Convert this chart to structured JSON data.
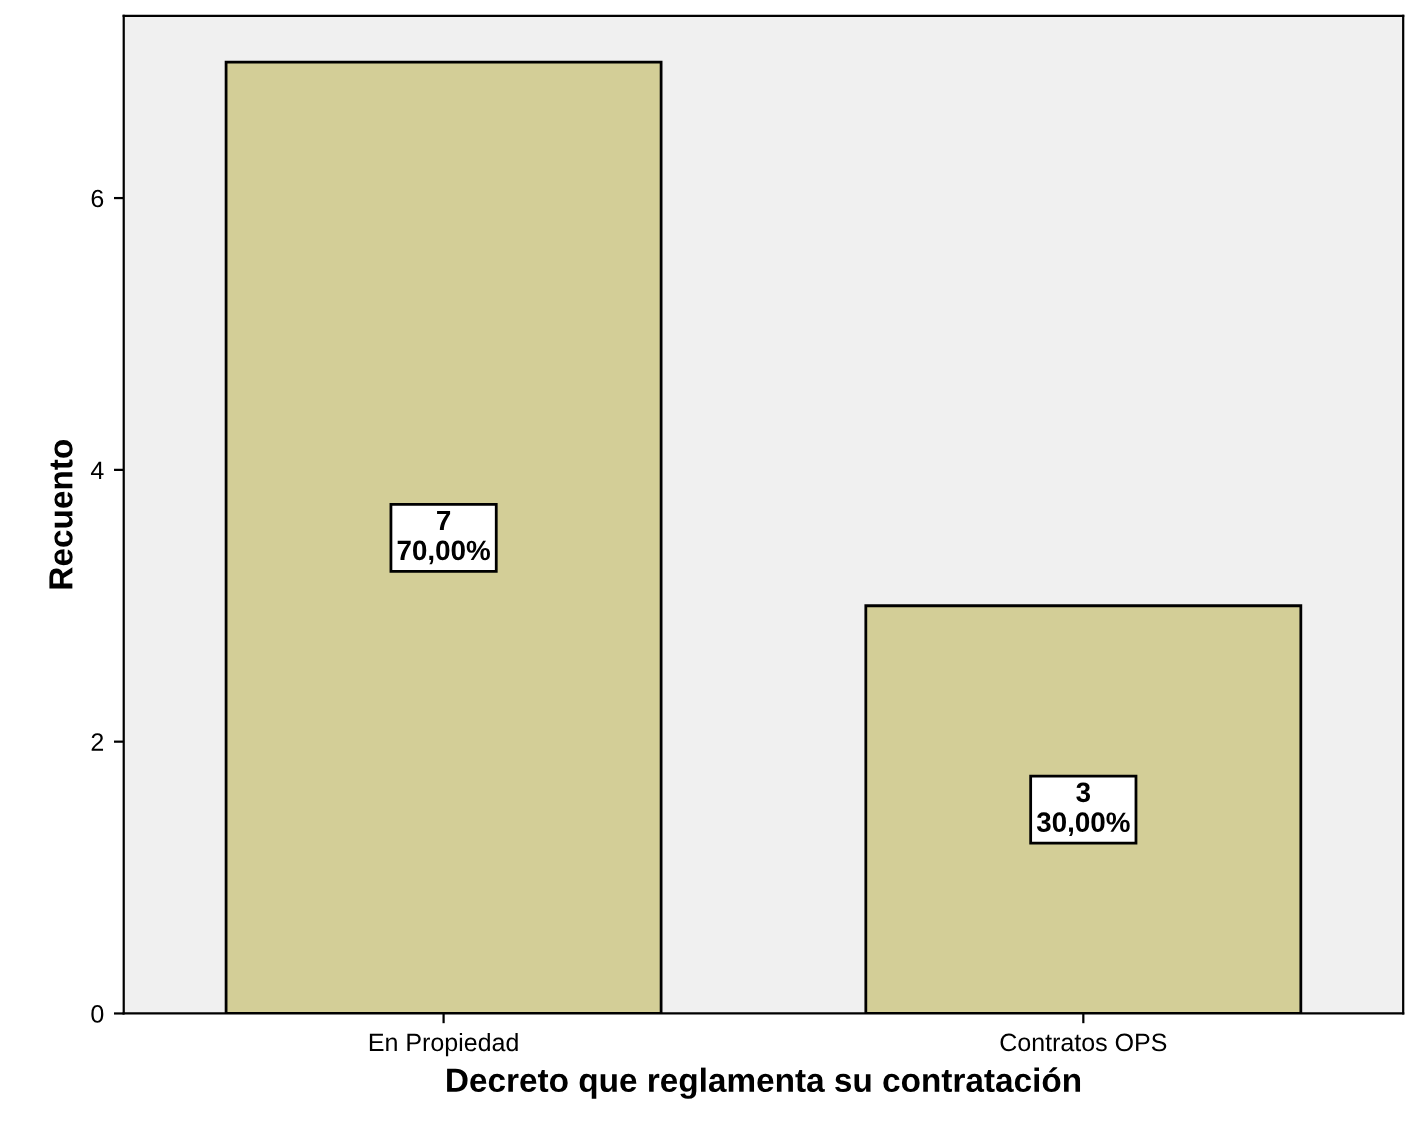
{
  "chart_data": {
    "type": "bar",
    "xlabel": "Decreto que reglamenta su contratación",
    "ylabel": "Recuento",
    "categories": [
      "En Propiedad",
      "Contratos OPS"
    ],
    "values": [
      7,
      3
    ],
    "color": "#d3ce97",
    "value_labels": [
      "7\n70,00%",
      "3\n30,00%"
    ],
    "ylim": [
      0,
      7.34
    ],
    "yticks": [
      0,
      2,
      4,
      6
    ],
    "grid": false
  }
}
